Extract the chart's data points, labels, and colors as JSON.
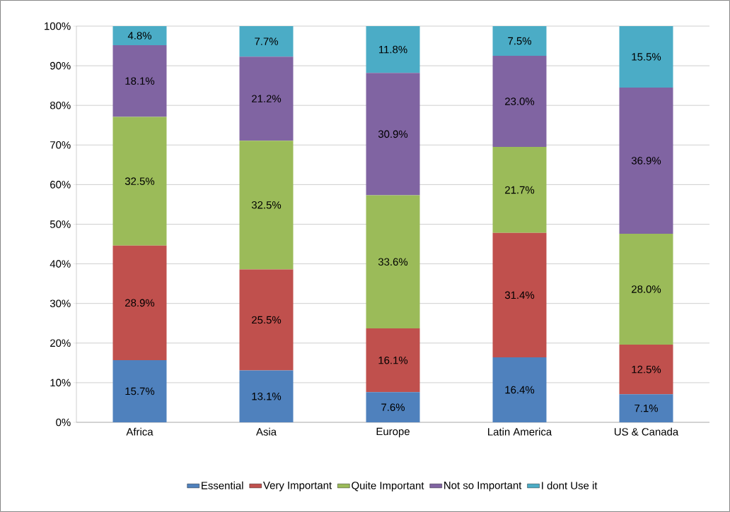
{
  "chart_data": {
    "type": "bar",
    "stacked": true,
    "categories": [
      "Africa",
      "Asia",
      "Europe",
      "Latin America",
      "US & Canada"
    ],
    "series": [
      {
        "name": "Essential",
        "color": "#4f81bd",
        "values": [
          15.7,
          13.1,
          7.6,
          16.4,
          7.1
        ],
        "value_labels": [
          "15.7%",
          "13.1%",
          "7.6%",
          "16.4%",
          "7.1%"
        ]
      },
      {
        "name": "Very Important",
        "color": "#c0504d",
        "values": [
          28.9,
          25.5,
          16.1,
          31.4,
          12.5
        ],
        "value_labels": [
          "28.9%",
          "25.5%",
          "16.1%",
          "31.4%",
          "12.5%"
        ]
      },
      {
        "name": "Quite Important",
        "color": "#9bbb59",
        "values": [
          32.5,
          32.5,
          33.6,
          21.7,
          28.0
        ],
        "value_labels": [
          "32.5%",
          "32.5%",
          "33.6%",
          "21.7%",
          "28.0%"
        ]
      },
      {
        "name": "Not so Important",
        "color": "#8064a2",
        "values": [
          18.1,
          21.2,
          30.9,
          23.0,
          36.9
        ],
        "value_labels": [
          "18.1%",
          "21.2%",
          "30.9%",
          "23.0%",
          "36.9%"
        ]
      },
      {
        "name": "I dont Use it",
        "color": "#4bacc6",
        "values": [
          4.8,
          7.7,
          11.8,
          7.5,
          15.5
        ],
        "value_labels": [
          "4.8%",
          "7.7%",
          "11.8%",
          "7.5%",
          "15.5%"
        ]
      }
    ],
    "ylim": [
      0,
      100
    ],
    "yticks": [
      {
        "value": 0,
        "label": "0%"
      },
      {
        "value": 10,
        "label": "10%"
      },
      {
        "value": 20,
        "label": "20%"
      },
      {
        "value": 30,
        "label": "30%"
      },
      {
        "value": 40,
        "label": "40%"
      },
      {
        "value": 50,
        "label": "50%"
      },
      {
        "value": 60,
        "label": "60%"
      },
      {
        "value": 70,
        "label": "70%"
      },
      {
        "value": 80,
        "label": "80%"
      },
      {
        "value": 90,
        "label": "90%"
      },
      {
        "value": 100,
        "label": "100%"
      }
    ],
    "grid": "y",
    "legend": "bottom"
  }
}
